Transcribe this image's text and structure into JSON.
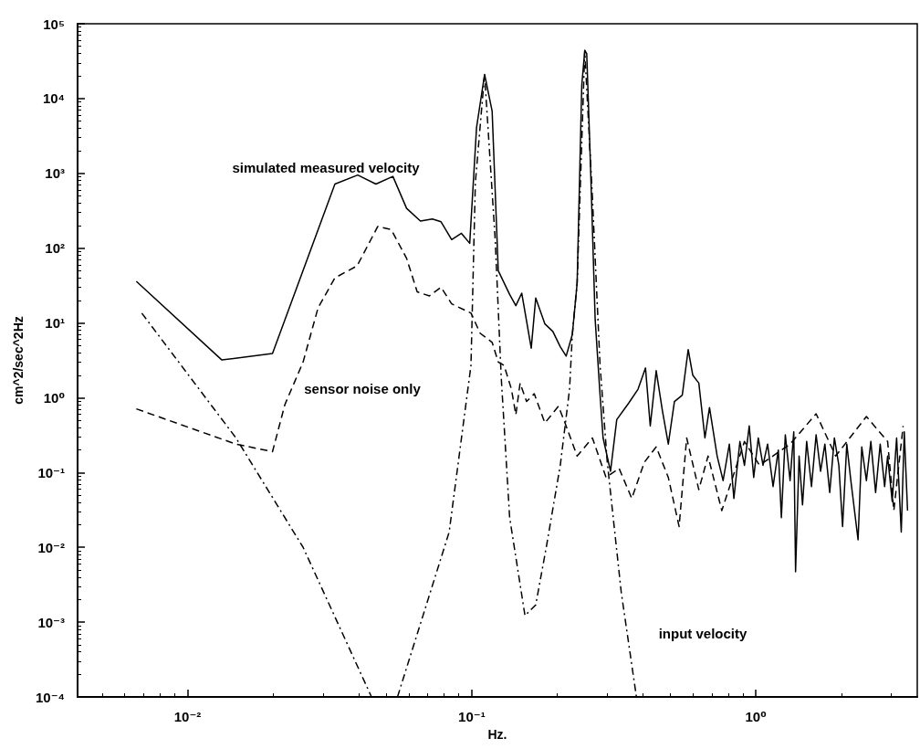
{
  "chart_data": {
    "type": "line",
    "xlabel": "Hz.",
    "ylabel": "cm^2/sec^2Hz",
    "log": "xy",
    "grid": false,
    "marker": "none",
    "xlim": [
      0.0041,
      3.7
    ],
    "xticks": [
      {
        "value": 0.01,
        "label": "10⁻²"
      },
      {
        "value": 0.1,
        "label": "10⁻¹"
      },
      {
        "value": 1,
        "label": "10⁰"
      }
    ],
    "ylim": [
      0.0001,
      100000
    ],
    "yticks": [
      {
        "value": 0.0001,
        "label": "10⁻⁴"
      },
      {
        "value": 0.001,
        "label": "10⁻³"
      },
      {
        "value": 0.01,
        "label": "10⁻²"
      },
      {
        "value": 0.1,
        "label": "10⁻¹"
      },
      {
        "value": 1,
        "label": "10⁰"
      },
      {
        "value": 10,
        "label": "10¹"
      },
      {
        "value": 100,
        "label": "10²"
      },
      {
        "value": 1000,
        "label": "10³"
      },
      {
        "value": 10000,
        "label": "10⁴"
      },
      {
        "value": 100000,
        "label": "10⁵"
      }
    ],
    "annotations": [
      "simulated measured velocity",
      "sensor noise only",
      "input velocity"
    ],
    "series": [
      {
        "color": "#000000",
        "line_style": "solid",
        "x": [
          0.0066,
          0.0132,
          0.0199,
          0.033,
          0.0397,
          0.046,
          0.0528,
          0.059,
          0.066,
          0.0727,
          0.078,
          0.085,
          0.092,
          0.0984,
          0.104,
          0.111,
          0.118,
          0.124,
          0.136,
          0.143,
          0.15,
          0.162,
          0.168,
          0.181,
          0.193,
          0.205,
          0.215,
          0.226,
          0.235,
          0.244,
          0.25,
          0.254,
          0.262,
          0.272,
          0.283,
          0.29,
          0.308,
          0.324,
          0.357,
          0.385,
          0.409,
          0.425,
          0.446,
          0.469,
          0.492,
          0.517,
          0.551,
          0.578,
          0.6,
          0.63,
          0.662,
          0.687,
          0.731,
          0.767,
          0.807,
          0.837,
          0.879,
          0.912,
          0.948,
          0.983,
          1.02,
          1.06,
          1.1,
          1.15,
          1.2,
          1.23,
          1.27,
          1.32,
          1.36,
          1.38,
          1.42,
          1.46,
          1.51,
          1.57,
          1.63,
          1.69,
          1.75,
          1.82,
          1.89,
          1.96,
          2.02,
          2.09,
          2.16,
          2.29,
          2.36,
          2.45,
          2.54,
          2.64,
          2.74,
          2.84,
          2.91,
          3.02,
          3.13,
          3.25,
          3.33,
          3.42
        ],
        "values": [
          36,
          3.2,
          3.9,
          720,
          950,
          720,
          910,
          340,
          230,
          245,
          225,
          130,
          158,
          116,
          4100,
          21000,
          6800,
          50,
          24,
          17,
          25,
          4.6,
          21.5,
          9.7,
          7.7,
          4.8,
          3.6,
          7.0,
          34,
          15100,
          44000,
          40000,
          1200,
          11,
          1.08,
          0.29,
          0.104,
          0.51,
          0.85,
          1.3,
          2.5,
          0.42,
          2.3,
          0.67,
          0.24,
          0.89,
          1.08,
          4.4,
          2.0,
          1.57,
          0.29,
          0.74,
          0.166,
          0.078,
          0.24,
          0.045,
          0.26,
          0.125,
          0.42,
          0.086,
          0.29,
          0.125,
          0.24,
          0.065,
          0.2,
          0.025,
          0.32,
          0.078,
          0.35,
          0.0047,
          0.166,
          0.037,
          0.26,
          0.065,
          0.32,
          0.104,
          0.24,
          0.054,
          0.29,
          0.125,
          0.019,
          0.24,
          0.078,
          0.0126,
          0.22,
          0.078,
          0.26,
          0.054,
          0.24,
          0.065,
          0.166,
          0.041,
          0.29,
          0.016,
          0.35,
          0.031
        ]
      },
      {
        "color": "#000000",
        "line_style": "dashed",
        "x": [
          0.0066,
          0.0148,
          0.0199,
          0.022,
          0.0255,
          0.0288,
          0.033,
          0.0395,
          0.0467,
          0.0521,
          0.059,
          0.0643,
          0.071,
          0.078,
          0.085,
          0.0995,
          0.107,
          0.118,
          0.124,
          0.13,
          0.138,
          0.143,
          0.148,
          0.156,
          0.166,
          0.181,
          0.202,
          0.213,
          0.235,
          0.266,
          0.297,
          0.33,
          0.366,
          0.405,
          0.446,
          0.492,
          0.537,
          0.571,
          0.63,
          0.679,
          0.759,
          0.912,
          1.03,
          1.32,
          1.63,
          1.91,
          2.45,
          2.91,
          3.06,
          3.3
        ],
        "values": [
          0.71,
          0.24,
          0.19,
          0.81,
          3.0,
          16,
          40,
          58,
          195,
          177,
          73,
          26,
          23,
          30,
          18,
          13.5,
          7.3,
          5.5,
          3.0,
          2.7,
          1.3,
          0.59,
          1.57,
          0.89,
          1.13,
          0.46,
          0.77,
          0.46,
          0.166,
          0.29,
          0.086,
          0.114,
          0.045,
          0.137,
          0.22,
          0.086,
          0.019,
          0.29,
          0.059,
          0.166,
          0.031,
          0.26,
          0.125,
          0.24,
          0.61,
          0.166,
          0.56,
          0.26,
          0.031,
          0.42
        ]
      },
      {
        "color": "#000000",
        "line_style": "dashdot",
        "x": [
          0.0069,
          0.0148,
          0.0255,
          0.0444,
          0.049,
          0.0548,
          0.0833,
          0.0994,
          0.103,
          0.111,
          0.121,
          0.127,
          0.136,
          0.154,
          0.168,
          0.183,
          0.205,
          0.221,
          0.226,
          0.235,
          0.25,
          0.266,
          0.283,
          0.3,
          0.336,
          0.38
        ],
        "values": [
          13.5,
          0.29,
          0.01,
          0.0001,
          null,
          0.0001,
          0.016,
          2.7,
          755,
          21000,
          128,
          1.9,
          0.025,
          0.00122,
          0.0017,
          0.01,
          0.125,
          1.3,
          7.0,
          34,
          44000,
          470,
          2.7,
          0.137,
          0.0025,
          0.0001
        ]
      }
    ]
  }
}
